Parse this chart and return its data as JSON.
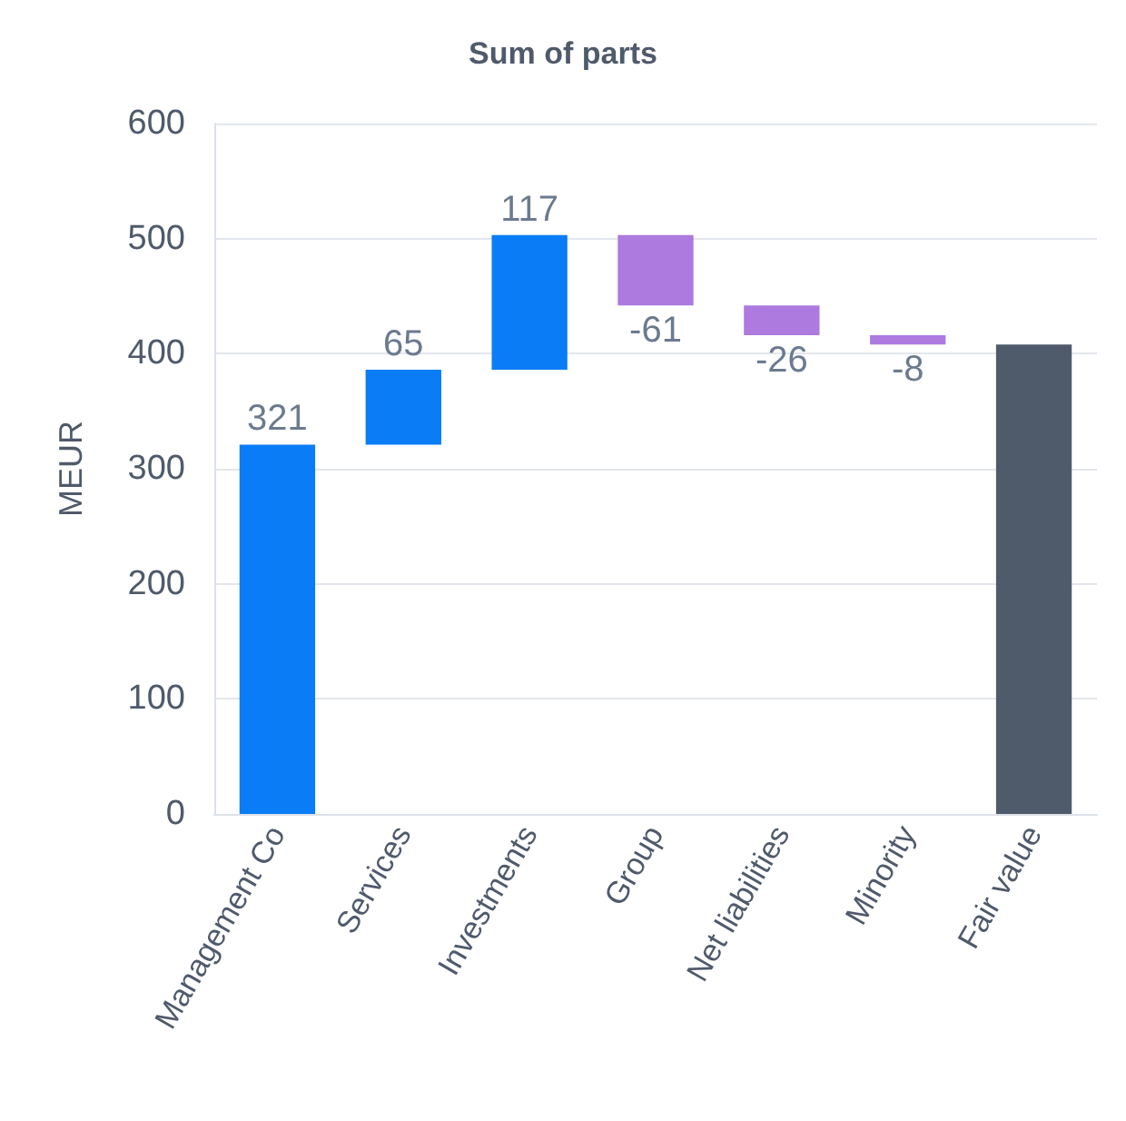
{
  "chart_data": {
    "type": "bar",
    "title": "Sum of parts",
    "ylabel": "MEUR",
    "categories": [
      "Management Co",
      "Services",
      "Investments",
      "Group",
      "Net liabilities",
      "Minority",
      "Fair value"
    ],
    "values": [
      321,
      65,
      117,
      -61,
      -26,
      -8,
      408
    ],
    "base": [
      0,
      321,
      386,
      503,
      442,
      416,
      0
    ],
    "colors": [
      "#0a7cf6",
      "#0a7cf6",
      "#0a7cf6",
      "#ad7ae0",
      "#ad7ae0",
      "#ad7ae0",
      "#4f5a6b"
    ],
    "value_labels": [
      "321",
      "65",
      "117",
      "-61",
      "-26",
      "-8",
      null
    ],
    "ylim": [
      0,
      600
    ],
    "yticks": [
      0,
      100,
      200,
      300,
      400,
      500,
      600
    ],
    "grid": "y"
  }
}
